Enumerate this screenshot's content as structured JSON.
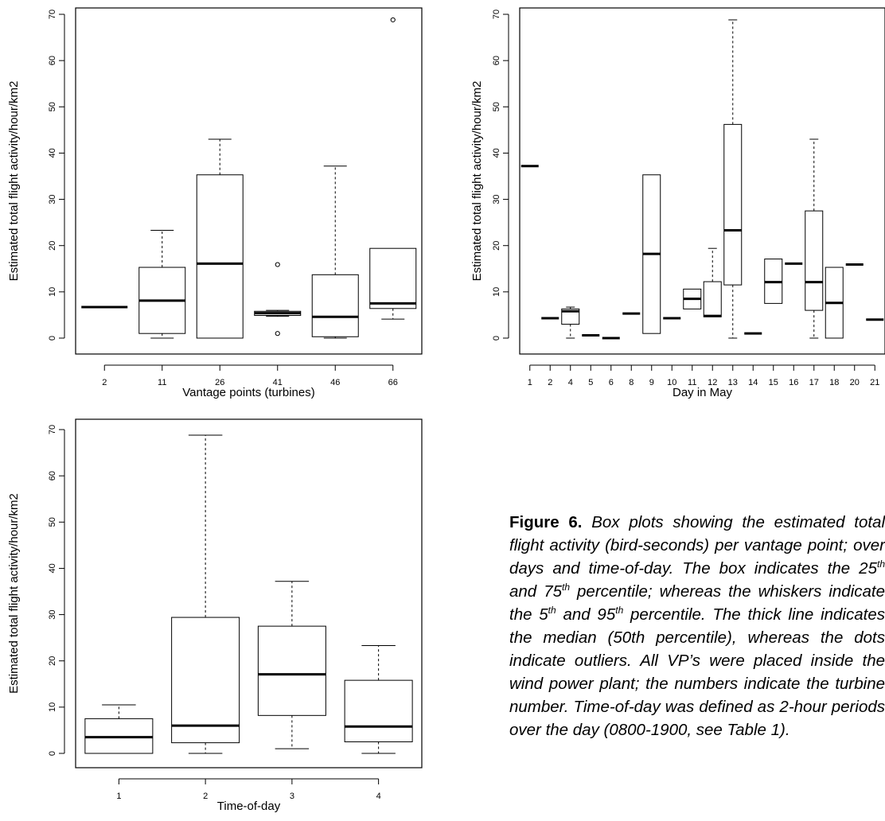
{
  "chart_data": [
    {
      "type": "box",
      "xlabel": "Vantage points (turbines)",
      "ylabel": "Estimated total flight activity/hour/km2",
      "ylim": [
        0,
        70
      ],
      "yticks": [
        "0",
        "10",
        "20",
        "30",
        "40",
        "50",
        "60",
        "70"
      ],
      "categories": [
        "2",
        "11",
        "26",
        "41",
        "46",
        "66"
      ],
      "boxes": [
        {
          "lw": 6.7,
          "q1": 6.7,
          "med": 6.7,
          "q3": 6.7,
          "uw": 6.7,
          "out": []
        },
        {
          "lw": 0.0,
          "q1": 1.0,
          "med": 8.1,
          "q3": 15.3,
          "uw": 23.3,
          "out": []
        },
        {
          "lw": 0.0,
          "q1": 0.0,
          "med": 16.1,
          "q3": 35.3,
          "uw": 43.0,
          "out": []
        },
        {
          "lw": 4.7,
          "q1": 4.9,
          "med": 5.4,
          "q3": 5.8,
          "uw": 6.0,
          "out": [
            1.0,
            15.9
          ]
        },
        {
          "lw": 0.0,
          "q1": 0.3,
          "med": 4.6,
          "q3": 13.7,
          "uw": 37.2,
          "out": []
        },
        {
          "lw": 4.1,
          "q1": 6.4,
          "med": 7.5,
          "q3": 19.4,
          "uw": 19.4,
          "out": [
            68.8
          ]
        }
      ]
    },
    {
      "type": "box",
      "xlabel": "Day in May",
      "ylabel": "Estimated total flight activity/hour/km2",
      "ylim": [
        0,
        70
      ],
      "yticks": [
        "0",
        "10",
        "20",
        "30",
        "40",
        "50",
        "60",
        "70"
      ],
      "categories": [
        "1",
        "2",
        "4",
        "5",
        "6",
        "8",
        "9",
        "10",
        "11",
        "12",
        "13",
        "14",
        "15",
        "16",
        "17",
        "18",
        "20",
        "21"
      ],
      "boxes": [
        {
          "lw": 37.2,
          "q1": 37.2,
          "med": 37.2,
          "q3": 37.2,
          "uw": 37.2,
          "out": []
        },
        {
          "lw": 4.3,
          "q1": 4.3,
          "med": 4.3,
          "q3": 4.3,
          "uw": 4.3,
          "out": []
        },
        {
          "lw": 0.0,
          "q1": 3.0,
          "med": 5.8,
          "q3": 6.3,
          "uw": 6.7,
          "out": []
        },
        {
          "lw": 0.6,
          "q1": 0.6,
          "med": 0.6,
          "q3": 0.6,
          "uw": 0.6,
          "out": []
        },
        {
          "lw": 0.0,
          "q1": 0.0,
          "med": 0.0,
          "q3": 0.0,
          "uw": 0.0,
          "out": []
        },
        {
          "lw": 5.3,
          "q1": 5.3,
          "med": 5.3,
          "q3": 5.3,
          "uw": 5.3,
          "out": []
        },
        {
          "lw": 1.0,
          "q1": 1.0,
          "med": 18.2,
          "q3": 35.3,
          "uw": 35.3,
          "out": []
        },
        {
          "lw": 4.3,
          "q1": 4.3,
          "med": 4.3,
          "q3": 4.3,
          "uw": 4.3,
          "out": []
        },
        {
          "lw": 6.3,
          "q1": 6.3,
          "med": 8.5,
          "q3": 10.6,
          "uw": 10.6,
          "out": []
        },
        {
          "lw": 4.6,
          "q1": 4.6,
          "med": 4.8,
          "q3": 12.2,
          "uw": 19.4,
          "out": []
        },
        {
          "lw": 0.0,
          "q1": 11.5,
          "med": 23.3,
          "q3": 46.2,
          "uw": 68.8,
          "out": []
        },
        {
          "lw": 1.0,
          "q1": 1.0,
          "med": 1.0,
          "q3": 1.0,
          "uw": 1.0,
          "out": []
        },
        {
          "lw": 7.5,
          "q1": 7.5,
          "med": 12.1,
          "q3": 17.1,
          "uw": 17.1,
          "out": []
        },
        {
          "lw": 16.1,
          "q1": 16.1,
          "med": 16.1,
          "q3": 16.1,
          "uw": 16.1,
          "out": []
        },
        {
          "lw": 0.0,
          "q1": 6.0,
          "med": 12.1,
          "q3": 27.5,
          "uw": 43.0,
          "out": []
        },
        {
          "lw": 0.0,
          "q1": 0.0,
          "med": 7.6,
          "q3": 15.3,
          "uw": 15.3,
          "out": []
        },
        {
          "lw": 15.9,
          "q1": 15.9,
          "med": 15.9,
          "q3": 15.9,
          "uw": 15.9,
          "out": []
        },
        {
          "lw": 4.0,
          "q1": 4.0,
          "med": 4.0,
          "q3": 4.0,
          "uw": 4.0,
          "out": []
        }
      ]
    },
    {
      "type": "box",
      "xlabel": "Time-of-day",
      "ylabel": "Estimated total flight activity/hour/km2",
      "ylim": [
        0,
        70
      ],
      "yticks": [
        "0",
        "10",
        "20",
        "30",
        "40",
        "50",
        "60",
        "70"
      ],
      "categories": [
        "1",
        "2",
        "3",
        "4"
      ],
      "boxes": [
        {
          "lw": 0.0,
          "q1": 0.0,
          "med": 3.5,
          "q3": 7.5,
          "uw": 10.5,
          "out": []
        },
        {
          "lw": 0.0,
          "q1": 2.3,
          "med": 6.0,
          "q3": 29.4,
          "uw": 68.8,
          "out": []
        },
        {
          "lw": 1.0,
          "q1": 8.2,
          "med": 17.1,
          "q3": 27.5,
          "uw": 37.2,
          "out": []
        },
        {
          "lw": 0.0,
          "q1": 2.5,
          "med": 5.8,
          "q3": 15.8,
          "uw": 23.3,
          "out": []
        }
      ]
    }
  ],
  "caption": {
    "figure_label": "Figure 6.",
    "t1": " Box plots showing the estimated total flight activity (bird-seconds) per vantage point; over days and time-of-day. The box indicates the 25",
    "sup1": "th",
    "t2": " and 75",
    "sup2": "th",
    "t3": " percentile; whereas the whiskers indicate the 5",
    "sup3": "th",
    "t4": " and 95",
    "sup4": "th",
    "t5": " percentile. The thick line indicates the median (50th percentile), whereas the dots indicate outliers. All VP’s were placed inside the wind power plant; the numbers indicate the turbine number. Time-of-day was defined as 2-hour periods over the day (0800-1900, see Table 1)."
  }
}
